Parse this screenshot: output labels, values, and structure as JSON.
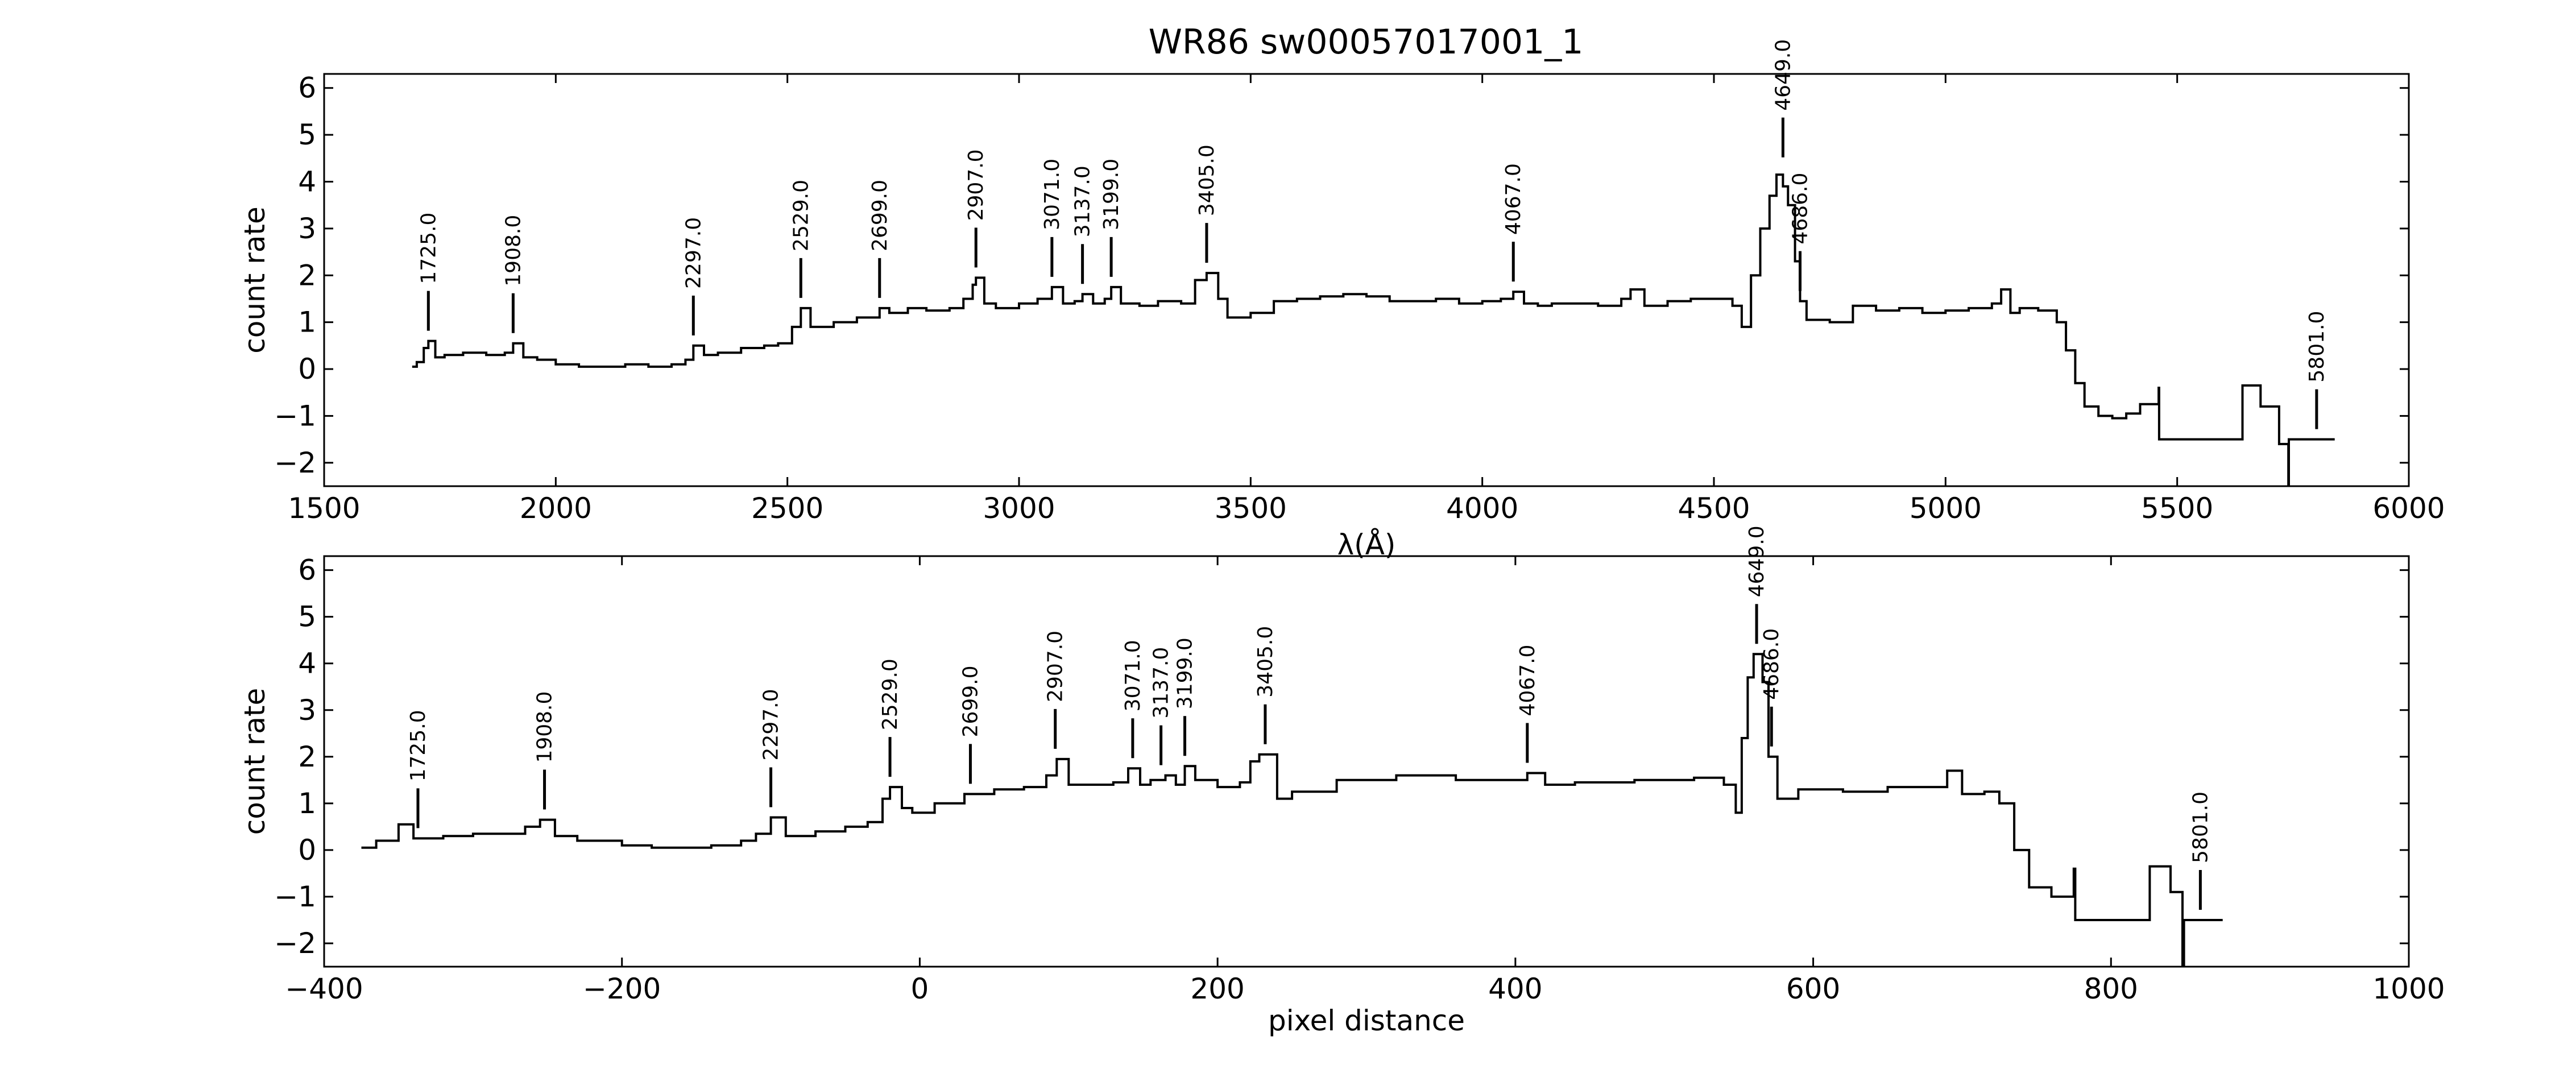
{
  "title": "WR86  sw00057017001_1",
  "colors": {
    "line": "#000000",
    "background": "#ffffff"
  },
  "chart_data": [
    {
      "type": "line",
      "xlabel": "λ(Å)",
      "ylabel": "count rate",
      "xlim": [
        1500,
        6000
      ],
      "ylim": [
        -2.5,
        6.3
      ],
      "xticks": [
        1500,
        2000,
        2500,
        3000,
        3500,
        4000,
        4500,
        5000,
        5500,
        6000
      ],
      "xtick_labels": [
        "1500",
        "2000",
        "2500",
        "3000",
        "3500",
        "4000",
        "4500",
        "5000",
        "5500",
        "6000"
      ],
      "yticks": [
        -2,
        -1,
        0,
        1,
        2,
        3,
        4,
        5,
        6
      ],
      "ytick_labels": [
        "−2",
        "−1",
        "0",
        "1",
        "2",
        "3",
        "4",
        "5",
        "6"
      ],
      "x": [
        1690,
        1700,
        1715,
        1725,
        1740,
        1760,
        1800,
        1850,
        1890,
        1908,
        1930,
        1960,
        2000,
        2050,
        2100,
        2150,
        2200,
        2250,
        2280,
        2297,
        2320,
        2350,
        2400,
        2450,
        2480,
        2510,
        2529,
        2550,
        2600,
        2650,
        2699,
        2720,
        2760,
        2800,
        2850,
        2880,
        2900,
        2907,
        2925,
        2950,
        3000,
        3040,
        3071,
        3095,
        3120,
        3137,
        3160,
        3185,
        3199,
        3220,
        3260,
        3300,
        3350,
        3380,
        3405,
        3430,
        3450,
        3500,
        3550,
        3600,
        3650,
        3700,
        3750,
        3800,
        3850,
        3900,
        3950,
        4000,
        4040,
        4067,
        4090,
        4120,
        4150,
        4200,
        4250,
        4300,
        4320,
        4350,
        4400,
        4450,
        4500,
        4540,
        4560,
        4580,
        4600,
        4620,
        4635,
        4649,
        4660,
        4675,
        4686,
        4700,
        4750,
        4800,
        4850,
        4900,
        4950,
        5000,
        5050,
        5100,
        5120,
        5140,
        5160,
        5200,
        5240,
        5260,
        5280,
        5300,
        5330,
        5360,
        5390,
        5420,
        5460,
        5461,
        5640,
        5641,
        5680,
        5720,
        5740,
        5741,
        5840
      ],
      "y": [
        0.05,
        0.15,
        0.45,
        0.6,
        0.25,
        0.3,
        0.35,
        0.3,
        0.35,
        0.55,
        0.25,
        0.2,
        0.1,
        0.05,
        0.05,
        0.1,
        0.05,
        0.1,
        0.2,
        0.5,
        0.3,
        0.35,
        0.45,
        0.5,
        0.55,
        0.9,
        1.3,
        0.9,
        1.0,
        1.1,
        1.3,
        1.2,
        1.3,
        1.25,
        1.3,
        1.5,
        1.8,
        1.95,
        1.4,
        1.3,
        1.4,
        1.5,
        1.75,
        1.4,
        1.45,
        1.6,
        1.4,
        1.5,
        1.75,
        1.4,
        1.35,
        1.45,
        1.4,
        1.9,
        2.05,
        1.5,
        1.1,
        1.2,
        1.45,
        1.5,
        1.55,
        1.6,
        1.55,
        1.45,
        1.45,
        1.5,
        1.4,
        1.45,
        1.5,
        1.65,
        1.4,
        1.35,
        1.4,
        1.4,
        1.35,
        1.5,
        1.7,
        1.35,
        1.45,
        1.5,
        1.5,
        1.35,
        0.9,
        2.0,
        3.0,
        3.7,
        4.15,
        3.9,
        3.5,
        2.3,
        1.45,
        1.05,
        1.0,
        1.35,
        1.25,
        1.3,
        1.2,
        1.25,
        1.3,
        1.4,
        1.7,
        1.2,
        1.3,
        1.25,
        1.0,
        0.4,
        -0.3,
        -0.8,
        -1.0,
        -1.05,
        -0.95,
        -0.75,
        -0.4,
        -1.5,
        -1.5,
        -0.35,
        -0.8,
        -1.6,
        -2.6,
        -1.5,
        -1.5
      ],
      "line_markers": [
        {
          "x": 1725,
          "label": "1725.0"
        },
        {
          "x": 1908,
          "label": "1908.0"
        },
        {
          "x": 2297,
          "label": "2297.0"
        },
        {
          "x": 2529,
          "label": "2529.0"
        },
        {
          "x": 2699,
          "label": "2699.0"
        },
        {
          "x": 2907,
          "label": "2907.0"
        },
        {
          "x": 3071,
          "label": "3071.0"
        },
        {
          "x": 3137,
          "label": "3137.0"
        },
        {
          "x": 3199,
          "label": "3199.0"
        },
        {
          "x": 3405,
          "label": "3405.0"
        },
        {
          "x": 4067,
          "label": "4067.0"
        },
        {
          "x": 4649,
          "label": "4649.0"
        },
        {
          "x": 4686,
          "label": "4686.0"
        },
        {
          "x": 5801,
          "label": "5801.0"
        }
      ]
    },
    {
      "type": "line",
      "xlabel": "pixel distance",
      "ylabel": "count rate",
      "xlim": [
        -400,
        1000
      ],
      "ylim": [
        -2.5,
        6.3
      ],
      "xticks": [
        -400,
        -200,
        0,
        200,
        400,
        600,
        800,
        1000
      ],
      "xtick_labels": [
        "−400",
        "−200",
        "0",
        "200",
        "400",
        "600",
        "800",
        "1000"
      ],
      "yticks": [
        -2,
        -1,
        0,
        1,
        2,
        3,
        4,
        5,
        6
      ],
      "ytick_labels": [
        "−2",
        "−1",
        "0",
        "1",
        "2",
        "3",
        "4",
        "5",
        "6"
      ],
      "x": [
        -375,
        -365,
        -350,
        -340,
        -320,
        -300,
        -280,
        -265,
        -255,
        -245,
        -230,
        -200,
        -180,
        -160,
        -140,
        -120,
        -110,
        -100,
        -90,
        -70,
        -50,
        -35,
        -25,
        -20,
        -12,
        -5,
        10,
        30,
        50,
        70,
        85,
        92,
        100,
        110,
        130,
        140,
        148,
        155,
        165,
        172,
        178,
        185,
        200,
        215,
        222,
        228,
        240,
        250,
        280,
        320,
        360,
        400,
        408,
        420,
        440,
        480,
        520,
        540,
        548,
        552,
        556,
        560,
        566,
        570,
        576,
        590,
        620,
        650,
        680,
        690,
        700,
        715,
        725,
        735,
        745,
        760,
        775,
        776,
        825,
        826,
        840,
        848,
        849,
        875
      ],
      "y": [
        0.05,
        0.2,
        0.55,
        0.25,
        0.3,
        0.35,
        0.35,
        0.5,
        0.65,
        0.3,
        0.2,
        0.1,
        0.05,
        0.05,
        0.1,
        0.2,
        0.35,
        0.7,
        0.3,
        0.4,
        0.5,
        0.6,
        1.1,
        1.35,
        0.9,
        0.8,
        1.0,
        1.2,
        1.3,
        1.35,
        1.6,
        1.95,
        1.4,
        1.4,
        1.45,
        1.75,
        1.4,
        1.5,
        1.6,
        1.4,
        1.8,
        1.5,
        1.35,
        1.45,
        1.9,
        2.05,
        1.1,
        1.25,
        1.5,
        1.6,
        1.5,
        1.5,
        1.65,
        1.4,
        1.45,
        1.5,
        1.55,
        1.4,
        0.8,
        2.4,
        3.7,
        4.2,
        3.6,
        2.0,
        1.1,
        1.3,
        1.25,
        1.35,
        1.35,
        1.7,
        1.2,
        1.25,
        1.0,
        0.0,
        -0.8,
        -1.0,
        -0.4,
        -1.5,
        -1.5,
        -0.35,
        -0.9,
        -2.6,
        -1.5,
        -1.5
      ],
      "line_markers": [
        {
          "x": -337,
          "label": "1725.0"
        },
        {
          "x": -252,
          "label": "1908.0"
        },
        {
          "x": -100,
          "label": "2297.0"
        },
        {
          "x": -20,
          "label": "2529.0"
        },
        {
          "x": 34,
          "label": "2699.0"
        },
        {
          "x": 91,
          "label": "2907.0"
        },
        {
          "x": 143,
          "label": "3071.0"
        },
        {
          "x": 162,
          "label": "3137.0"
        },
        {
          "x": 178,
          "label": "3199.0"
        },
        {
          "x": 232,
          "label": "3405.0"
        },
        {
          "x": 408,
          "label": "4067.0"
        },
        {
          "x": 562,
          "label": "4649.0"
        },
        {
          "x": 572,
          "label": "4686.0"
        },
        {
          "x": 860,
          "label": "5801.0"
        }
      ]
    }
  ]
}
